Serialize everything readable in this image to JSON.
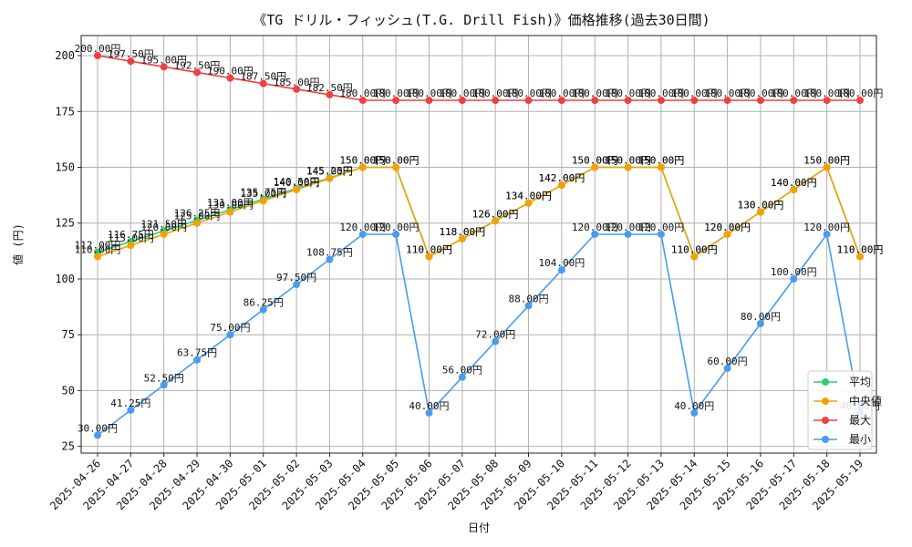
{
  "chart_data": {
    "type": "line",
    "title": "《TG ドリル・フィッシュ(T.G. Drill Fish)》価格推移(過去30日間)",
    "xlabel": "日付",
    "ylabel": "値 (円)",
    "ylim": [
      22,
      209
    ],
    "yticks": [
      25,
      50,
      75,
      100,
      125,
      150,
      175,
      200
    ],
    "grid": true,
    "legend_position": "bottom-right",
    "label_suffix": "円",
    "categories": [
      "2025-04-26",
      "2025-04-27",
      "2025-04-28",
      "2025-04-29",
      "2025-04-30",
      "2025-05-01",
      "2025-05-02",
      "2025-05-03",
      "2025-05-04",
      "2025-05-05",
      "2025-05-06",
      "2025-05-07",
      "2025-05-08",
      "2025-05-09",
      "2025-05-10",
      "2025-05-11",
      "2025-05-12",
      "2025-05-13",
      "2025-05-14",
      "2025-05-15",
      "2025-05-16",
      "2025-05-17",
      "2025-05-18",
      "2025-05-19"
    ],
    "series": [
      {
        "name": "平均",
        "color": "#2ecc71",
        "values": [
          112.0,
          116.75,
          121.5,
          126.25,
          131.0,
          135.75,
          140.5,
          145.25,
          150,
          150,
          110,
          118,
          126,
          134,
          142,
          150,
          150,
          150,
          110,
          120,
          130,
          140,
          150,
          110
        ],
        "labels": [
          "112.00円",
          "116.75円",
          "121.50円",
          "126.25円",
          "131.00円",
          "135.75円",
          "140.50円",
          "145.25円",
          "150.00円",
          "150.00円",
          "110.00円",
          "118.00円",
          "126.00円",
          "134.00円",
          "142.00円",
          "150.00円",
          "150.00円",
          "150.00円",
          "110.00円",
          "120.00円",
          "130.00円",
          "140.00円",
          "150.00円",
          "110.00円"
        ]
      },
      {
        "name": "中央値",
        "color": "#f5a000",
        "values": [
          110.0,
          115.0,
          120.0,
          125.0,
          130.0,
          135.0,
          140.0,
          145.0,
          150,
          150,
          110,
          118,
          126,
          134,
          142,
          150,
          150,
          150,
          110,
          120,
          130,
          140,
          150,
          110
        ],
        "labels": [
          "110.00円",
          "115.00円",
          "120.00円",
          "125.00円",
          "130.00円",
          "135.00円",
          "140.00円",
          "145.00円",
          "150.00円",
          "150.00円",
          "110.00円",
          "118.00円",
          "126.00円",
          "134.00円",
          "142.00円",
          "150.00円",
          "150.00円",
          "150.00円",
          "110.00円",
          "120.00円",
          "130.00円",
          "140.00円",
          "150.00円",
          "110.00円"
        ]
      },
      {
        "name": "最大",
        "color": "#f04040",
        "values": [
          200.0,
          197.5,
          195.0,
          192.5,
          190.0,
          187.5,
          185.0,
          182.5,
          180,
          180,
          180,
          180,
          180,
          180,
          180,
          180,
          180,
          180,
          180,
          180,
          180,
          180,
          180,
          180
        ],
        "labels": [
          "200.00円",
          "197.50円",
          "195.00円",
          "192.50円",
          "190.00円",
          "187.50円",
          "185.00円",
          "182.50円",
          "180.00円",
          "180.00円",
          "180.00円",
          "180.00円",
          "180.00円",
          "180.00円",
          "180.00円",
          "180.00円",
          "180.00円",
          "180.00円",
          "180.00円",
          "180.00円",
          "180.00円",
          "180.00円",
          "180.00円",
          "180.00円"
        ]
      },
      {
        "name": "最小",
        "color": "#4a9af0",
        "values": [
          30.0,
          41.25,
          52.5,
          63.75,
          75.0,
          86.25,
          97.5,
          108.75,
          120,
          120,
          40,
          56,
          72,
          88,
          104,
          120,
          120,
          120,
          40,
          60,
          80,
          100,
          120,
          40
        ],
        "labels": [
          "30.00円",
          "41.25円",
          "52.50円",
          "63.75円",
          "75.00円",
          "86.25円",
          "97.50円",
          "108.75円",
          "120.00円",
          "120.00円",
          "40.00円",
          "56.00円",
          "72.00円",
          "88.00円",
          "104.00円",
          "120.00円",
          "120.00円",
          "120.00円",
          "40.00円",
          "60.00円",
          "80.00円",
          "100.00円",
          "120.00円",
          "40.00円"
        ]
      }
    ]
  }
}
